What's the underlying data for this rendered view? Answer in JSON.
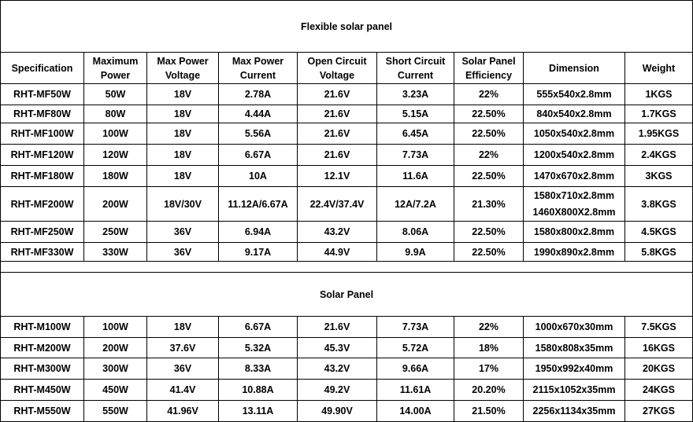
{
  "flexible": {
    "title": "Flexible solar panel",
    "headers": [
      [
        "Specification"
      ],
      [
        "Maximum",
        "Power"
      ],
      [
        "Max Power",
        "Voltage"
      ],
      [
        "Max Power",
        "Current"
      ],
      [
        "Open Circuit",
        "Voltage"
      ],
      [
        "Short Circuit",
        "Current"
      ],
      [
        "Solar Panel",
        "Efficiency"
      ],
      [
        "Dimension"
      ],
      [
        "Weight"
      ]
    ],
    "rows": [
      [
        "RHT-MF50W",
        "50W",
        "18V",
        "2.78A",
        "21.6V",
        "3.23A",
        "22%",
        "555x540x2.8mm",
        "1KGS"
      ],
      [
        "RHT-MF80W",
        "80W",
        "18V",
        "4.44A",
        "21.6V",
        "5.15A",
        "22.50%",
        "840x540x2.8mm",
        "1.7KGS"
      ],
      [
        "RHT-MF100W",
        "100W",
        "18V",
        "5.56A",
        "21.6V",
        "6.45A",
        "22.50%",
        "1050x540x2.8mm",
        "1.95KGS"
      ],
      [
        "RHT-MF120W",
        "120W",
        "18V",
        "6.67A",
        "21.6V",
        "7.73A",
        "22%",
        "1200x540x2.8mm",
        "2.4KGS"
      ],
      [
        "RHT-MF180W",
        "180W",
        "18V",
        "10A",
        "12.1V",
        "11.6A",
        "22.50%",
        "1470x670x2.8mm",
        "3KGS"
      ],
      [
        "RHT-MF200W",
        "200W",
        "18V/30V",
        "11.12A/6.67A",
        "22.4V/37.4V",
        "12A/7.2A",
        "21.30%",
        "1580x710x2.8mm\n1460X800X2.8mm",
        "3.8KGS"
      ],
      [
        "RHT-MF250W",
        "250W",
        "36V",
        "6.94A",
        "43.2V",
        "8.06A",
        "22.50%",
        "1580x800x2.8mm",
        "4.5KGS"
      ],
      [
        "RHT-MF330W",
        "330W",
        "36V",
        "9.17A",
        "44.9V",
        "9.9A",
        "22.50%",
        "1990x890x2.8mm",
        "5.8KGS"
      ]
    ]
  },
  "rigid": {
    "title": "Solar Panel",
    "rows": [
      [
        "RHT-M100W",
        "100W",
        "18V",
        "6.67A",
        "21.6V",
        "7.73A",
        "22%",
        "1000x670x30mm",
        "7.5KGS"
      ],
      [
        "RHT-M200W",
        "200W",
        "37.6V",
        "5.32A",
        "45.3V",
        "5.72A",
        "18%",
        "1580x808x35mm",
        "16KGS"
      ],
      [
        "RHT-M300W",
        "300W",
        "36V",
        "8.33A",
        "43.2V",
        "9.66A",
        "17%",
        "1950x992x40mm",
        "20KGS"
      ],
      [
        "RHT-M450W",
        "450W",
        "41.4V",
        "10.88A",
        "49.2V",
        "11.61A",
        "20.20%",
        "2115x1052x35mm",
        "24KGS"
      ],
      [
        "RHT-M550W",
        "550W",
        "41.96V",
        "13.11A",
        "49.90V",
        "14.00A",
        "21.50%",
        "2256x1134x35mm",
        "27KGS"
      ]
    ]
  }
}
